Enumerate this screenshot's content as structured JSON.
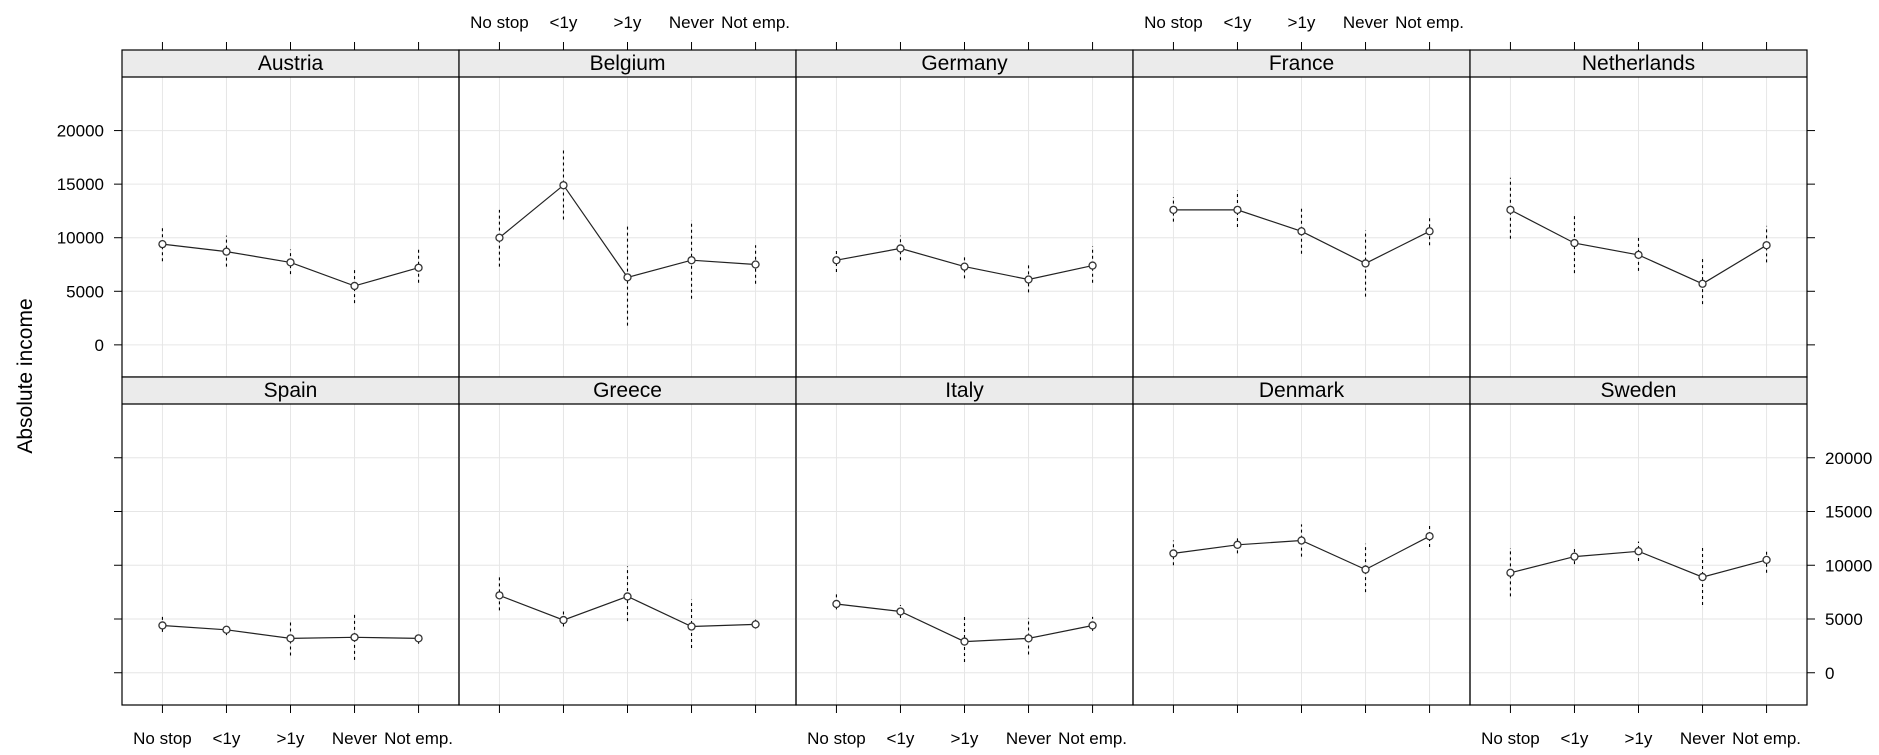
{
  "chart_data": {
    "type": "line",
    "layout": "trellis 5x2 (two rows of five panels)",
    "ylabel": "Absolute income",
    "xlabel": "",
    "categories": [
      "No stop",
      "<1y",
      ">1y",
      "Never",
      "Not emp."
    ],
    "yticks": [
      0,
      5000,
      10000,
      15000,
      20000
    ],
    "ylim": [
      -3000,
      25000
    ],
    "grid": true,
    "error_bars": "vertical dotted lines",
    "panels": [
      {
        "name": "Austria",
        "values": [
          9400,
          8700,
          7700,
          5500,
          7200
        ],
        "lower": [
          7800,
          7300,
          6600,
          3900,
          5800
        ],
        "upper": [
          11000,
          10200,
          8900,
          7100,
          8900
        ]
      },
      {
        "name": "Belgium",
        "values": [
          10000,
          14900,
          6300,
          7900,
          7500
        ],
        "lower": [
          7300,
          11700,
          1800,
          4300,
          5700
        ],
        "upper": [
          12600,
          18300,
          11300,
          11600,
          9300
        ]
      },
      {
        "name": "Germany",
        "values": [
          7900,
          9000,
          7300,
          6100,
          7400
        ],
        "lower": [
          6800,
          7900,
          6200,
          4900,
          5800
        ],
        "upper": [
          9000,
          10200,
          8400,
          7600,
          9200
        ]
      },
      {
        "name": "France",
        "values": [
          12600,
          12600,
          10600,
          7600,
          10600
        ],
        "lower": [
          11500,
          11000,
          8500,
          4500,
          9300
        ],
        "upper": [
          13800,
          14400,
          12800,
          10700,
          12000
        ]
      },
      {
        "name": "Netherlands",
        "values": [
          12600,
          9500,
          8400,
          5700,
          9300
        ],
        "lower": [
          9900,
          6700,
          6900,
          3800,
          7700
        ],
        "upper": [
          15600,
          12300,
          10100,
          8000,
          11100
        ]
      },
      {
        "name": "Spain",
        "values": [
          4400,
          4000,
          3200,
          3300,
          3200
        ],
        "lower": [
          3800,
          3500,
          1600,
          1200,
          2700
        ],
        "upper": [
          5200,
          4600,
          4800,
          5600,
          3600
        ]
      },
      {
        "name": "Greece",
        "values": [
          7200,
          4900,
          7100,
          4300,
          4500
        ],
        "lower": [
          5800,
          4300,
          4800,
          2300,
          4100
        ],
        "upper": [
          9000,
          5800,
          9900,
          6800,
          5000
        ]
      },
      {
        "name": "Italy",
        "values": [
          6400,
          5700,
          2900,
          3200,
          4400
        ],
        "lower": [
          5900,
          5100,
          1000,
          1700,
          3900
        ],
        "upper": [
          7300,
          6300,
          5400,
          5100,
          5200
        ]
      },
      {
        "name": "Denmark",
        "values": [
          11100,
          11900,
          12300,
          9600,
          12700
        ],
        "lower": [
          10000,
          11100,
          10800,
          7500,
          11700
        ],
        "upper": [
          12300,
          12700,
          13800,
          12000,
          13800
        ]
      },
      {
        "name": "Sweden",
        "values": [
          9300,
          10800,
          11300,
          8900,
          10500
        ],
        "lower": [
          7100,
          10100,
          10400,
          6300,
          9300
        ],
        "upper": [
          11600,
          11700,
          12200,
          11800,
          11300
        ]
      }
    ]
  }
}
